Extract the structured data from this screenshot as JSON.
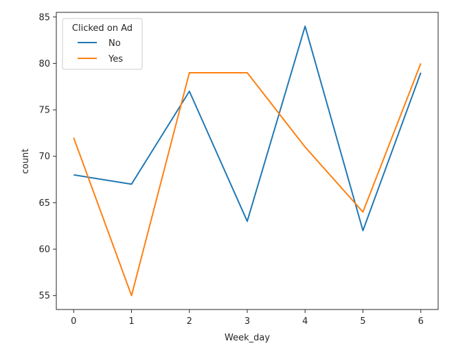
{
  "chart_data": {
    "type": "line",
    "title": "",
    "xlabel": "Week_day",
    "ylabel": "count",
    "x": [
      0,
      1,
      2,
      3,
      4,
      5,
      6
    ],
    "x_ticks": [
      "0",
      "1",
      "2",
      "3",
      "4",
      "5",
      "6"
    ],
    "y_ticks": [
      "55",
      "60",
      "65",
      "70",
      "75",
      "80",
      "85"
    ],
    "xlim": [
      -0.3,
      6.3
    ],
    "ylim": [
      53.5,
      85.5
    ],
    "grid": false,
    "legend": {
      "title": "Clicked on Ad",
      "placement": "top-left"
    },
    "series": [
      {
        "name": "No",
        "color": "#1f77b4",
        "values": [
          68,
          67,
          77,
          63,
          84,
          62,
          79
        ]
      },
      {
        "name": "Yes",
        "color": "#ff7f0e",
        "values": [
          72,
          55,
          79,
          79,
          71,
          64,
          80
        ]
      }
    ]
  }
}
